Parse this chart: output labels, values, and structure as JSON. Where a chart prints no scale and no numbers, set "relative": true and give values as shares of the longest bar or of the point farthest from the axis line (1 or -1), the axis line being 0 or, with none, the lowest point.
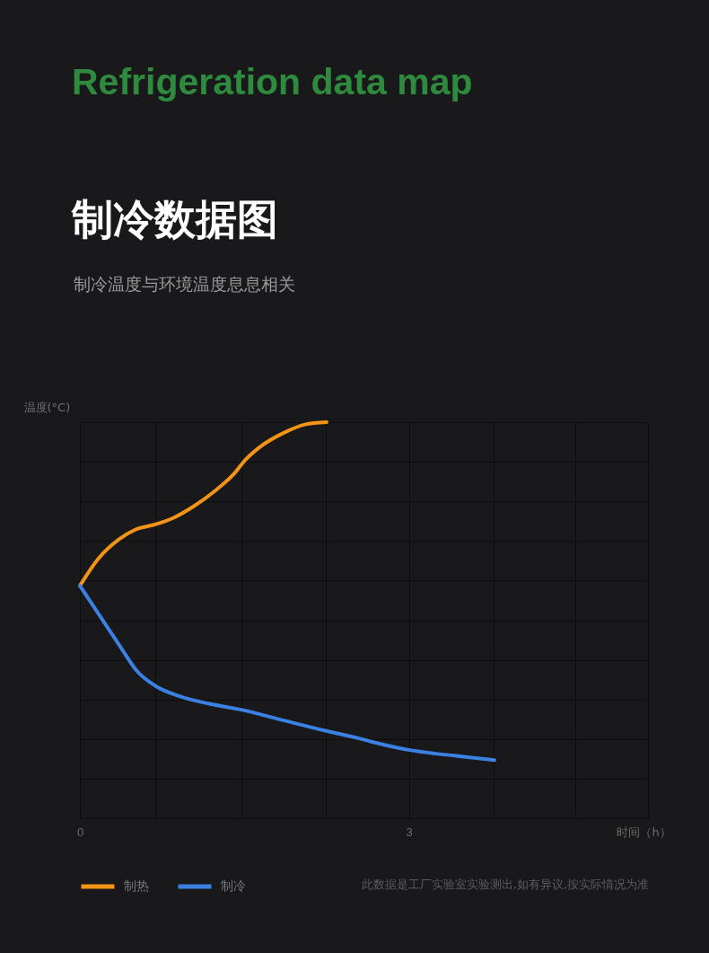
{
  "chart_data": {
    "type": "line",
    "title": "Refrigeration data map",
    "subtitle": "制冷数据图",
    "annotations": [
      "制冷温度与环境温度息息相关",
      "此数据是工厂实验室实验测出,如有异议,按实际情况为准"
    ],
    "xlabel": "时间（h）",
    "ylabel": "温度(°C)",
    "relative": true,
    "xlim": [
      0,
      5.18
    ],
    "xticks": [
      0,
      {
        "value": 0.69,
        "label": null
      },
      {
        "value": 1.47,
        "label": null
      },
      {
        "value": 2.24,
        "label": null
      },
      3,
      {
        "value": 3.77,
        "label": null
      },
      {
        "value": 4.52,
        "label": null
      }
    ],
    "grid": true,
    "legend": "bottom left",
    "series": [
      {
        "name": "制热",
        "color": "#f39417",
        "x": [
          0,
          0.17,
          0.36,
          0.5,
          0.69,
          0.85,
          1.04,
          1.23,
          1.4,
          1.51,
          1.65,
          1.86,
          2.05,
          2.25
        ],
        "values": [
          0.587,
          0.656,
          0.705,
          0.728,
          0.742,
          0.758,
          0.788,
          0.826,
          0.868,
          0.905,
          0.939,
          0.973,
          0.994,
          1.0
        ]
      },
      {
        "name": "制冷",
        "color": "#3b80e3",
        "x": [
          0,
          0.17,
          0.36,
          0.52,
          0.69,
          0.91,
          1.18,
          1.47,
          1.86,
          2.24,
          2.54,
          2.65,
          3.01,
          3.25,
          3.52,
          3.78
        ],
        "values": [
          0.587,
          0.516,
          0.437,
          0.372,
          0.334,
          0.308,
          0.289,
          0.274,
          0.247,
          0.221,
          0.202,
          0.194,
          0.172,
          0.163,
          0.155,
          0.147
        ]
      }
    ]
  }
}
